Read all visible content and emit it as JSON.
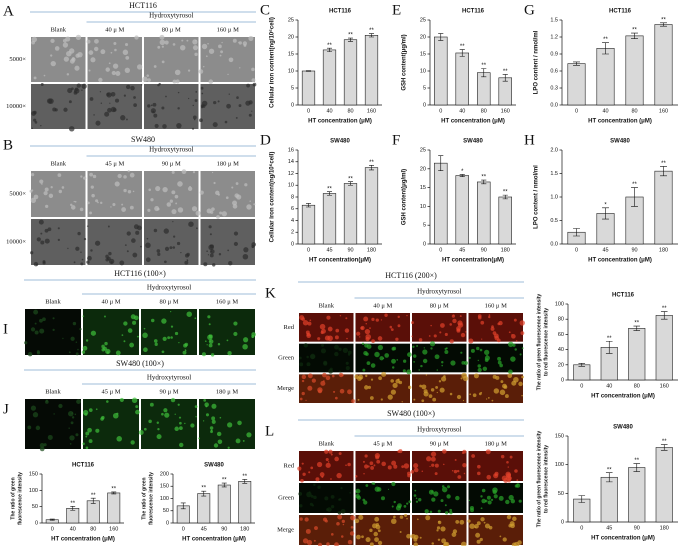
{
  "panels": {
    "A": {
      "letter": "A",
      "title": "HCT116",
      "treatment": "Hydroxytyrosol",
      "columns": [
        "Blank",
        "40 μ M",
        "80 μ M",
        "160 μ M"
      ],
      "rows": [
        "5000×",
        "10000×"
      ]
    },
    "B": {
      "letter": "B",
      "title": "SW480",
      "treatment": "Hydroxytyrosol",
      "columns": [
        "Blank",
        "45 μ M",
        "90 μ M",
        "180 μ M"
      ],
      "rows": [
        "5000×",
        "10000×"
      ]
    },
    "I": {
      "letter": "I",
      "title": "HCT116 (100×)",
      "treatment": "Hydroxytyrosol",
      "columns": [
        "Blank",
        "40 μ M",
        "80 μ M",
        "160 μ M"
      ]
    },
    "J": {
      "letter": "J",
      "title": "SW480 (100×)",
      "treatment": "Hydroxytyrosol",
      "columns": [
        "Blank",
        "45 μ M",
        "90 μ M",
        "180 μ M"
      ]
    },
    "K": {
      "letter": "K",
      "title": "HCT116 (200×)",
      "treatment": "Hydroxytyrosol",
      "columns": [
        "Blank",
        "40 μ M",
        "80 μ M",
        "160 μ M"
      ],
      "rows": [
        "Red",
        "Green",
        "Merge"
      ]
    },
    "L": {
      "letter": "L",
      "title": "SW480 (100×)",
      "treatment": "Hydroxytyrosol",
      "columns": [
        "Blank",
        "45 μ M",
        "90 μ M",
        "180 μ M"
      ],
      "rows": [
        "Red",
        "Green",
        "Merge"
      ]
    }
  },
  "chart_data": [
    {
      "type": "bar",
      "label": "C",
      "title": "HCT116",
      "ylabel": "Cellular iron content(ng/10⁶cell)",
      "xlabel": "HT concentration (μM)",
      "categories": [
        "0",
        "40",
        "80",
        "160"
      ],
      "values": [
        10,
        16.2,
        19.2,
        20.5
      ],
      "errors": [
        0.1,
        0.5,
        0.5,
        0.5
      ],
      "significance": [
        null,
        "**",
        "**",
        "**"
      ],
      "ylim": [
        0,
        25
      ],
      "yticks": [
        0,
        5,
        10,
        15,
        20,
        25
      ],
      "color": "#d9d9d9"
    },
    {
      "type": "bar",
      "label": "D",
      "title": "SW480",
      "ylabel": "Cellular iron content(ng/10⁶cell)",
      "xlabel": "HT concentration(μM)",
      "categories": [
        "0",
        "45",
        "90",
        "180"
      ],
      "values": [
        6.6,
        8.6,
        10.3,
        13
      ],
      "errors": [
        0.3,
        0.3,
        0.3,
        0.4
      ],
      "significance": [
        null,
        "**",
        "**",
        "**"
      ],
      "ylim": [
        0,
        16
      ],
      "yticks": [
        0,
        2,
        4,
        6,
        8,
        10,
        12,
        14,
        16
      ],
      "color": "#d9d9d9"
    },
    {
      "type": "bar",
      "label": "E",
      "title": "HCT116",
      "ylabel": "GSH content(μg/ml)",
      "xlabel": "HT concentration (μM)",
      "categories": [
        "0",
        "40",
        "80",
        "160"
      ],
      "values": [
        20,
        15.3,
        9.5,
        8
      ],
      "errors": [
        1,
        1,
        1.2,
        1
      ],
      "significance": [
        null,
        "**",
        "**",
        "**"
      ],
      "ylim": [
        0,
        25
      ],
      "yticks": [
        0,
        5,
        10,
        15,
        20,
        25
      ],
      "color": "#d9d9d9"
    },
    {
      "type": "bar",
      "label": "F",
      "title": "SW480",
      "ylabel": "GSH content(μg/ml)",
      "xlabel": "HT concentration(μM)",
      "categories": [
        "0",
        "45",
        "90",
        "180"
      ],
      "values": [
        21.5,
        18.2,
        16.5,
        12.5
      ],
      "errors": [
        2,
        0.3,
        0.5,
        0.5
      ],
      "significance": [
        null,
        "*",
        "**",
        "**"
      ],
      "ylim": [
        0,
        25
      ],
      "yticks": [
        0,
        5,
        10,
        15,
        20,
        25
      ],
      "color": "#d9d9d9"
    },
    {
      "type": "bar",
      "label": "G",
      "title": "HCT116",
      "ylabel": "LPO content / nmol/ml",
      "xlabel": "HT concentration (μM)",
      "categories": [
        "0",
        "40",
        "80",
        "160"
      ],
      "values": [
        0.73,
        1.0,
        1.22,
        1.42
      ],
      "errors": [
        0.03,
        0.1,
        0.05,
        0.03
      ],
      "significance": [
        null,
        "**",
        "**",
        "**"
      ],
      "ylim": [
        0,
        1.5
      ],
      "yticks": [
        {
          "value": 0,
          "label": "0.0"
        },
        0.3,
        0.6,
        0.9,
        1.2,
        1.5
      ],
      "color": "#d9d9d9"
    },
    {
      "type": "bar",
      "label": "H",
      "title": "SW480",
      "ylabel": "LPO content / nmol/ml",
      "xlabel": "HT concentration (μM)",
      "categories": [
        "0",
        "45",
        "90",
        "180"
      ],
      "values": [
        0.25,
        0.65,
        1.0,
        1.55
      ],
      "errors": [
        0.08,
        0.12,
        0.2,
        0.1
      ],
      "significance": [
        null,
        "*",
        "**",
        "**"
      ],
      "ylim": [
        0,
        2
      ],
      "yticks": [
        {
          "value": 0,
          "label": "0.0"
        },
        0.5,
        {
          "value": 1,
          "label": "1.0"
        },
        1.5,
        {
          "value": 2,
          "label": "2.0"
        }
      ],
      "color": "#d9d9d9"
    },
    {
      "type": "bar",
      "title": "HCT116",
      "ylabel": [
        "The ratio of green fluorescence intensity",
        "to red fluorescence intensity"
      ],
      "xlabel": "HT concentration (μM)",
      "categories": [
        "0",
        "40",
        "80",
        "160"
      ],
      "values": [
        20,
        43,
        68,
        85
      ],
      "errors": [
        2,
        8,
        3,
        5
      ],
      "significance": [
        null,
        "**",
        "**",
        "**"
      ],
      "ylim": [
        0,
        100
      ],
      "yticks": [
        0,
        20,
        40,
        60,
        80,
        100
      ],
      "color": "#d9d9d9"
    },
    {
      "type": "bar",
      "title": "SW480",
      "ylabel": [
        "The ratio of green fluorescence intensity",
        "to red fluorescence intensity"
      ],
      "xlabel": "HT concentration (μM)",
      "categories": [
        "0",
        "45",
        "90",
        "180"
      ],
      "values": [
        40,
        78,
        95,
        130
      ],
      "errors": [
        6,
        8,
        7,
        5
      ],
      "significance": [
        null,
        "**",
        "**",
        "**"
      ],
      "ylim": [
        0,
        150
      ],
      "yticks": [
        0,
        50,
        100,
        150
      ],
      "color": "#d9d9d9"
    },
    {
      "type": "bar",
      "title": "HCT116",
      "ylabel": [
        "The ratio of green",
        "fluorescence intensity"
      ],
      "xlabel": "HT concentration (μM)",
      "categories": [
        "0",
        "40",
        "80",
        "160"
      ],
      "values": [
        10,
        45,
        68,
        92
      ],
      "errors": [
        2,
        6,
        8,
        3
      ],
      "significance": [
        null,
        "**",
        "**",
        "**"
      ],
      "ylim": [
        0,
        150
      ],
      "yticks": [
        0,
        50,
        100,
        150
      ],
      "color": "#d9d9d9"
    },
    {
      "type": "bar",
      "title": "SW480",
      "ylabel": [
        "The ratio of green",
        "fluorescence intensity"
      ],
      "xlabel": "HT concentration (μM)",
      "categories": [
        "0",
        "45",
        "90",
        "180"
      ],
      "values": [
        70,
        120,
        155,
        170
      ],
      "errors": [
        12,
        10,
        8,
        8
      ],
      "significance": [
        null,
        "**",
        "**",
        "**"
      ],
      "ylim": [
        0,
        200
      ],
      "yticks": [
        0,
        50,
        100,
        150,
        200
      ],
      "color": "#d9d9d9"
    }
  ]
}
